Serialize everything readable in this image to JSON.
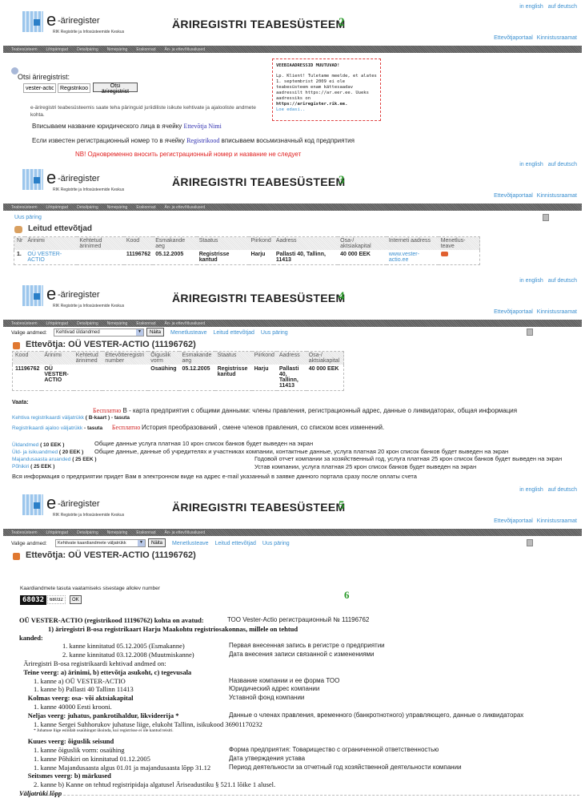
{
  "header": {
    "lang_en": "in english",
    "lang_de": "auf deutsch",
    "logo_e": "e",
    "logo_name": "-äriregister",
    "logo_sub": "RIK Registrite ja Infosüsteemide Keskus",
    "title": "ÄRIREGISTRI TEABESÜSTEEM",
    "portal_links": [
      "Ettevõtjaportaal",
      "Kinnistusraamat"
    ],
    "nav": [
      "Teabesüsteem",
      "Lihtpäringud",
      "Detailpäring",
      "Nimepäring",
      "Erakonnad",
      "Äri- ja ettevõtlusalused"
    ]
  },
  "steps": [
    "2",
    "3",
    "4",
    "5",
    "6"
  ],
  "search": {
    "label": "Otsi äriregistrist:",
    "name_value": "vester-actio",
    "code_value": "Registrikood",
    "button": "Otsi äriregistrist",
    "info": "e-äriregistri teabesüsteemis saate teha päringuid juriidiliste isikute kehtivate ja ajalooliste andmete kohta.",
    "notice_title": "VEEBIAADRESSID MUUTUVAD!",
    "notice_text": "Lp. Klient! Tuletame meelde, et alates 1. septembrist 2009 ei ole teabesüsteem enam kättesaadav aadressilt https://ar.eer.ee. Uueks aadressiks on",
    "notice_url": "https://ariregister.rik.ee.",
    "notice_more": "Loe edasi..",
    "ru_line1": "Вписываем название юридического лица в ячейку",
    "ru_line1_field": "Ettevõtja Nimi",
    "ru_line2a": "Если известен регистрационный номер то в ячейку",
    "ru_line2_field": "Registrikood",
    "ru_line2b": "вписываем восьмизначный код предприятия",
    "ru_warning": "NB! Одновременно вносить регистрационный номер и название не следует"
  },
  "results": {
    "new_query": "Uus päring",
    "heading": "Leitud ettevõtjad",
    "columns": [
      "Nr",
      "Ärinimi",
      "Kehtetud ärinimed",
      "Kood",
      "Esmakande aeg",
      "Staatus",
      "Piirkond",
      "Aadress",
      "Osa-/ aktsiakapital",
      "Interneti aadress",
      "Menetlus-teave"
    ],
    "row": {
      "nr": "1.",
      "name": "OÜ VESTER-ACTIO",
      "old": "",
      "code": "11196762",
      "date": "05.12.2005",
      "status": "Registrisse kantud",
      "region": "Harju",
      "address": "Pallasti 40, Tallinn, 11413",
      "capital": "40 000 EEK",
      "web": "www.vester-actio.ee"
    }
  },
  "company": {
    "select_label": "Valige andmed:",
    "select_value": "Kehtivad üldandmed",
    "show_button": "Näita",
    "links": [
      "Menetlusteave",
      "Leitud ettevõtjad",
      "Uus päring"
    ],
    "heading": "Ettevõtja: OÜ VESTER-ACTIO (11196762)",
    "columns": [
      "Kood",
      "Ärinimi",
      "Kehtetud ärinimed",
      "Ettevõtteregistri number",
      "Õiguslik vorm",
      "Esmakande aeg",
      "Staatus",
      "Piirkond",
      "Aadress",
      "Osa-/ aktsiakapital"
    ],
    "row": [
      "11196762",
      "OÜ VESTER-ACTIO",
      "",
      "",
      "Osaühing",
      "05.12.2005",
      "Registrisse kantud",
      "Harju",
      "Pallasti 40, Tallinn, 11413",
      "40 000 EEK"
    ],
    "vaata": "Vaata:",
    "free": "Бесплатно",
    "b_card_desc": "B - карта предприятия с общими данными: члены правления, регистрационный адрес, данные о ликвидаторах, общая информация",
    "b_card_link": "Kehtiva registrikaardi väljatrükk",
    "b_card_price": "( B-kaart ) - tasuta",
    "hist_link": "Registrikaardi ajaloo väljatrükk",
    "hist_price": "- tasuta",
    "hist_desc": "История преобразований , смене членов правления, со списком всех изменений.",
    "paid": [
      {
        "link": "Üldandmed",
        "price": "( 10 EEK )",
        "desc": "Общие данные  услуга платная 10 крон список банков будет выведен на экран"
      },
      {
        "link": "Üld- ja isikuandmed",
        "price": "( 20 EEK )",
        "desc": "Общие данные, данные об учредителях и  участниках компании, контактные данные, услуга платная 20 крон список банков будет выведен на экран"
      },
      {
        "link": "Majandusaasta aruanded",
        "price": "( 25 EEK )",
        "desc": "Годовой отчет компании за хозяйственный год,  услуга платная 25 крон список банков будет выведен на экран"
      },
      {
        "link": "Põhikiri",
        "price": "( 25 EEK )",
        "desc": "Устав компании,  услуга платная 25 крон список банков будет выведен на экран"
      }
    ],
    "email_note": "Вся информация о предприятии придет Вам в электронном виде на адрес e-mail указанный в заявке данного портала сразу после оплаты счета"
  },
  "card": {
    "select_value": "Kehtivate kaardiandmete väljatrükk",
    "captcha_label": "Kaardiandmete tasuta vaatamiseks sisestage allolev number",
    "captcha_code": "68032",
    "captcha_input": "68032",
    "ok": "OK"
  },
  "extract": {
    "lines": [
      {
        "t": "OÜ VESTER-ACTIO (registrikood 11196762) kohta on avatud:",
        "b": true,
        "i": 0,
        "ru": "ТОО Vester-Actio регистрационный  № 11196762"
      },
      {
        "t": "1) äriregistri B-osa registrikaart Harju Maakohtu registriosakonnas, millele on tehtud",
        "b": true,
        "i": 2,
        "ru": ""
      },
      {
        "t": "kanded:",
        "b": true,
        "i": 0,
        "ru": ""
      },
      {
        "t": "1. kanne kinnitatud 05.12.2005 (Esmakanne)",
        "b": false,
        "i": 3,
        "ru": "Первая внесенная запись в регистре о предприятии"
      },
      {
        "t": "2. kanne kinnitatud 03.12.2008 (Muutmiskanne)",
        "b": false,
        "i": 3,
        "ru": "Дата внесения записи связанной с изменениями"
      },
      {
        "t": "Äriregistri B-osa registrikaardi kehtivad andmed on:",
        "b": false,
        "i": 0.3,
        "ru": ""
      },
      {
        "t": "Teine veerg: a) ärinimi, b) ettevõtja asukoht, c) tegevusala",
        "b": true,
        "i": 0.3,
        "ru": ""
      },
      {
        "t": "1. kanne a) OÜ VESTER-ACTIO",
        "b": false,
        "i": 1,
        "ru": "Название компании и ее форма ТОО"
      },
      {
        "t": "1. kanne b) Pallasti 40 Tallinn 11413",
        "b": false,
        "i": 1,
        "ru": "Юридический адрес компании"
      },
      {
        "t": "Kolmas veerg: osa- või aktsiakapital",
        "b": true,
        "i": 0.6,
        "ru": "Уставной фонд компании"
      },
      {
        "t": "1. kanne 40000 Eesti krooni.",
        "b": false,
        "i": 1,
        "ru": ""
      },
      {
        "t": "Neljas veerg: juhatus, pankrotihaldur, likvideerija *",
        "b": true,
        "i": 0.6,
        "ru": "Данные о членах правления, временного (банкротнотного)  управляющего, данные о ликвидаторах"
      },
      {
        "t": "1. kanne Sergei Suhhorukov juhatuse liige, elukoht Tallinn, isikukood 36901170232",
        "b": false,
        "i": 1,
        "ru": ""
      },
      {
        "t": "* Juhatuse liige esindab osaühingut üksinda, kui registrisse ei ole kantud teisiti.",
        "b": false,
        "i": 1,
        "ru": "",
        "small": true
      },
      {
        "t": "Kuues veerg: õiguslik seisund",
        "b": true,
        "i": 0.6,
        "ru": ""
      },
      {
        "t": "1. kanne õiguslik vorm: osaühing",
        "b": false,
        "i": 1,
        "ru": "Форма предприятия: Товарищество с ограниченной ответственностью"
      },
      {
        "t": "1. kanne Põhikiri on kinnitatud 01.12.2005",
        "b": false,
        "i": 1,
        "ru": "Дата утверждения устава"
      },
      {
        "t": "1. kanne Majandusaasta algus 01.01 ja majandusaasta lõpp 31.12",
        "b": false,
        "i": 1,
        "ru": "Период деятельности за отчетный год хозяйственной деятельности компании"
      },
      {
        "t": "Seitsmes veerg: b) märkused",
        "b": true,
        "i": 0.6,
        "ru": ""
      },
      {
        "t": "2. kanne b) Kanne on tehtud registripidaja algatusel Äriseadustiku § 521.1 lõike 1 alusel.",
        "b": false,
        "i": 1,
        "ru": ""
      }
    ],
    "end": "Väljatrüki lõpp"
  },
  "colors": {
    "link": "#3a8fd0",
    "step": "#2a9a2a",
    "warning": "#e02020",
    "nav": "#666666"
  }
}
